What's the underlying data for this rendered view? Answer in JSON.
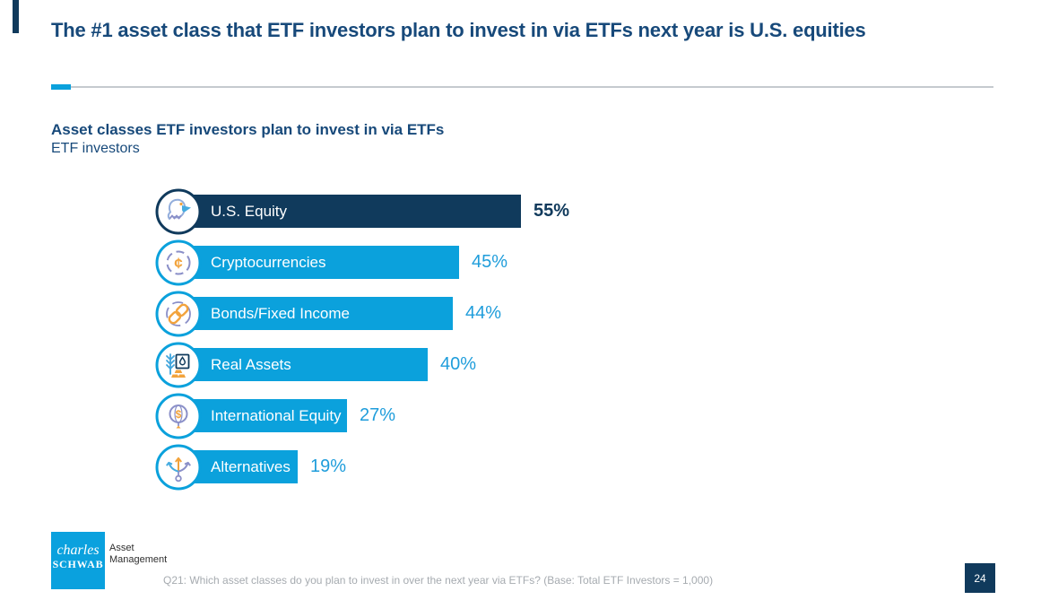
{
  "slide": {
    "title": "The #1 asset class that ETF investors plan to invest in via ETFs next year is U.S. equities",
    "page_number": "24",
    "footnote": "Q21: Which asset classes do you plan to invest in over the next year via ETFs? (Base: Total ETF Investors = 1,000)",
    "logo": {
      "line1": "charles",
      "line2": "SCHWAB",
      "unit_line1": "Asset",
      "unit_line2": "Management"
    }
  },
  "chart": {
    "heading": "Asset classes ETF investors plan to invest in via ETFs",
    "subheading": "ETF investors"
  },
  "chart_data": {
    "type": "bar",
    "orientation": "horizontal",
    "title": "Asset classes ETF investors plan to invest in via ETFs",
    "subtitle": "ETF investors",
    "categories": [
      "U.S. Equity",
      "Cryptocurrencies",
      "Bonds/Fixed Income",
      "Real Assets",
      "International Equity",
      "Alternatives"
    ],
    "values": [
      55,
      45,
      44,
      40,
      27,
      19
    ],
    "value_labels": [
      "55%",
      "45%",
      "44%",
      "40%",
      "27%",
      "19%"
    ],
    "icons": [
      "eagle-icon",
      "cent-coin-icon",
      "chain-link-icon",
      "commodities-icon",
      "globe-dollar-icon",
      "branching-arrows-icon"
    ],
    "highlight_index": 0,
    "axis_shown": false,
    "xlim": [
      0,
      100
    ]
  },
  "colors": {
    "navy": "#103A5C",
    "bright_blue": "#0BA1DC",
    "value_text_blue": "#1F9DDB",
    "heading_navy": "#17497A",
    "orange": "#F2A33C",
    "purple": "#8A8FC8",
    "light_blue_outline": "#93AEDC"
  }
}
